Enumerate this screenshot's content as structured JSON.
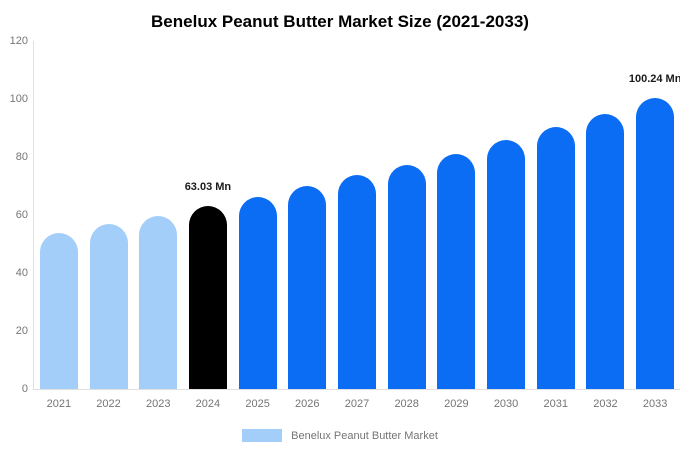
{
  "chart_data": {
    "type": "bar",
    "title": "Benelux Peanut Butter Market Size (2021-2033)",
    "categories": [
      "2021",
      "2022",
      "2023",
      "2024",
      "2025",
      "2026",
      "2027",
      "2028",
      "2029",
      "2030",
      "2031",
      "2032",
      "2033"
    ],
    "values": [
      53.8,
      56.9,
      59.8,
      63.03,
      66.2,
      69.9,
      73.8,
      77.4,
      81.2,
      85.7,
      90.5,
      94.7,
      100.24
    ],
    "unit": "Mn",
    "xlabel": "",
    "ylabel": "",
    "ylim": [
      0,
      120
    ],
    "yticks": [
      0,
      20,
      40,
      60,
      80,
      100,
      120
    ],
    "grid": false,
    "legend_position": "bottom",
    "bar_colors": [
      "#A4CEFA",
      "#A4CEFA",
      "#A4CEFA",
      "#000000",
      "#0B6CF4",
      "#0B6CF4",
      "#0B6CF4",
      "#0B6CF4",
      "#0B6CF4",
      "#0B6CF4",
      "#0B6CF4",
      "#0B6CF4",
      "#0B6CF4"
    ],
    "annotations": [
      {
        "category": "2024",
        "text": "63.03 Mn"
      },
      {
        "category": "2033",
        "text": "100.24 Mn"
      }
    ]
  },
  "legend": {
    "label": "Benelux Peanut Butter Market",
    "swatch_color": "#A4CEFA"
  },
  "colors": {
    "axis_line": "#E0E0E0",
    "tick_text": "#757575",
    "annotation_text": "#1A1A1A",
    "title_text": "#000000",
    "background": "#FFFFFF"
  }
}
